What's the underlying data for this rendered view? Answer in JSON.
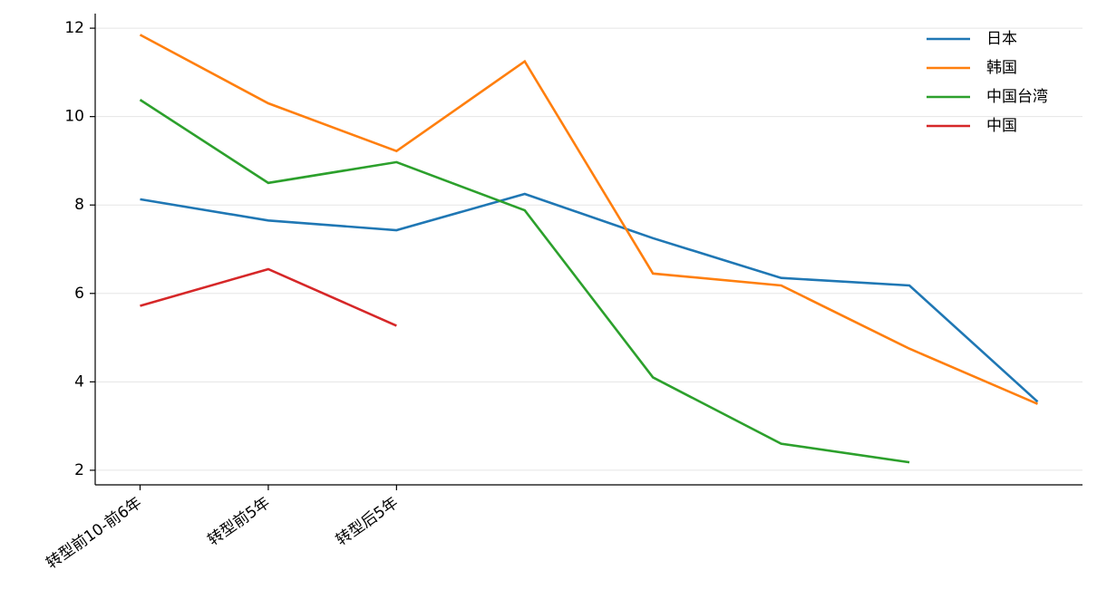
{
  "chart_data": {
    "type": "line",
    "categories": [
      "转型前10-前6年",
      "转型前5年",
      "转型后5年",
      null,
      null,
      null,
      null,
      null
    ],
    "series": [
      {
        "name": "日本",
        "color": "#1f77b4",
        "values": [
          8.13,
          7.65,
          7.43,
          8.25,
          7.25,
          6.35,
          6.18,
          3.55
        ]
      },
      {
        "name": "韩国",
        "color": "#ff7f0e",
        "values": [
          11.85,
          10.3,
          9.22,
          11.25,
          6.45,
          6.18,
          4.75,
          3.5
        ]
      },
      {
        "name": "中国台湾",
        "color": "#2ca02c",
        "values": [
          10.38,
          8.5,
          8.97,
          7.88,
          4.1,
          2.6,
          2.18,
          null
        ]
      },
      {
        "name": "中国",
        "color": "#d62728",
        "values": [
          5.72,
          6.55,
          5.27,
          null,
          null,
          null,
          null,
          null
        ]
      }
    ],
    "ylim": [
      1.67,
      12.33
    ],
    "yticks": [
      2,
      4,
      6,
      8,
      10,
      12
    ],
    "grid": true,
    "legend": "upper right"
  }
}
